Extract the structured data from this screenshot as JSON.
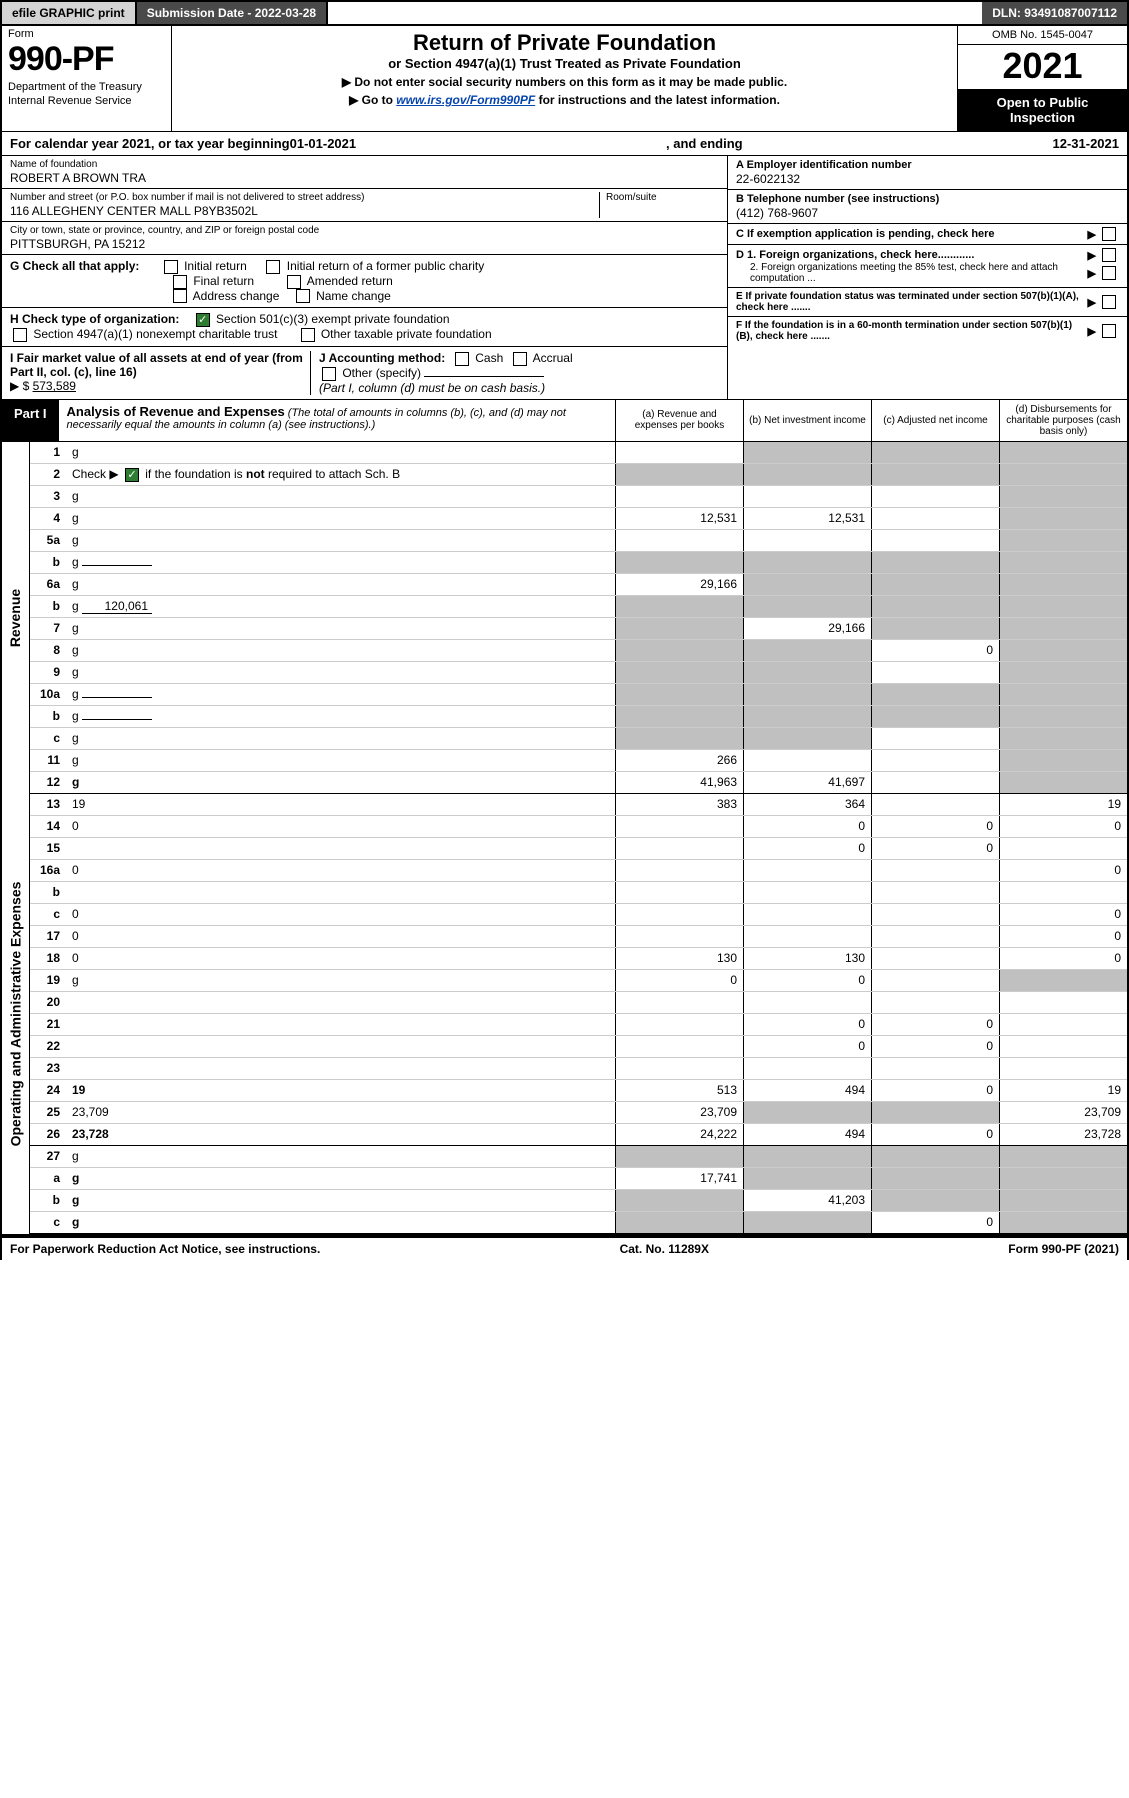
{
  "topbar": {
    "efile": "efile GRAPHIC print",
    "submission_label": "Submission Date - ",
    "submission_date": "2022-03-28",
    "dln_label": "DLN: ",
    "dln": "93491087007112"
  },
  "formbox": {
    "form_word": "Form",
    "form_number": "990-PF",
    "dept1": "Department of the Treasury",
    "dept2": "Internal Revenue Service"
  },
  "titlebox": {
    "main": "Return of Private Foundation",
    "sub": "or Section 4947(a)(1) Trust Treated as Private Foundation",
    "note1": "▶ Do not enter social security numbers on this form as it may be made public.",
    "note2_pre": "▶ Go to ",
    "note2_link": "www.irs.gov/Form990PF",
    "note2_post": " for instructions and the latest information."
  },
  "yearbox": {
    "omb": "OMB No. 1545-0047",
    "year": "2021",
    "open1": "Open to Public",
    "open2": "Inspection"
  },
  "calendar": {
    "pre": "For calendar year 2021, or tax year beginning ",
    "begin": "01-01-2021",
    "mid": ", and ending ",
    "end": "12-31-2021"
  },
  "entity": {
    "name_label": "Name of foundation",
    "name": "ROBERT A BROWN TRA",
    "addr_label": "Number and street (or P.O. box number if mail is not delivered to street address)",
    "addr": "116 ALLEGHENY CENTER MALL P8YB3502L",
    "room_label": "Room/suite",
    "city_label": "City or town, state or province, country, and ZIP or foreign postal code",
    "city": "PITTSBURGH, PA  15212",
    "ein_label": "A Employer identification number",
    "ein": "22-6022132",
    "phone_label": "B Telephone number (see instructions)",
    "phone": "(412) 768-9607",
    "c_label": "C If exemption application is pending, check here",
    "d1": "D 1. Foreign organizations, check here............",
    "d2": "2. Foreign organizations meeting the 85% test, check here and attach computation ...",
    "e_label": "E  If private foundation status was terminated under section 507(b)(1)(A), check here .......",
    "f_label": "F  If the foundation is in a 60-month termination under section 507(b)(1)(B), check here .......",
    "g_label": "G Check all that apply:",
    "g_opts": [
      "Initial return",
      "Initial return of a former public charity",
      "Final return",
      "Amended return",
      "Address change",
      "Name change"
    ],
    "h_label": "H Check type of organization:",
    "h1": "Section 501(c)(3) exempt private foundation",
    "h2": "Section 4947(a)(1) nonexempt charitable trust",
    "h3": "Other taxable private foundation",
    "i_label": "I Fair market value of all assets at end of year (from Part II, col. (c), line 16)",
    "i_val": "573,589",
    "j_label": "J Accounting method:",
    "j_cash": "Cash",
    "j_accrual": "Accrual",
    "j_other": "Other (specify)",
    "j_note": "(Part I, column (d) must be on cash basis.)"
  },
  "part1": {
    "label": "Part I",
    "title": "Analysis of Revenue and Expenses",
    "title_note": "(The total of amounts in columns (b), (c), and (d) may not necessarily equal the amounts in column (a) (see instructions).)",
    "cols": {
      "a": "(a)  Revenue and expenses per books",
      "b": "(b)  Net investment income",
      "c": "(c)  Adjusted net income",
      "d": "(d)  Disbursements for charitable purposes (cash basis only)"
    }
  },
  "sections": {
    "revenue": "Revenue",
    "opex": "Operating and Administrative Expenses"
  },
  "rows": [
    {
      "n": "1",
      "d": "g",
      "a": "",
      "b": "g",
      "c": "g"
    },
    {
      "n": "2",
      "d": "g",
      "a": "g",
      "b": "g",
      "c": "g",
      "checked": true
    },
    {
      "n": "3",
      "d": "g",
      "a": "",
      "b": "",
      "c": ""
    },
    {
      "n": "4",
      "d": "g",
      "a": "12,531",
      "b": "12,531",
      "c": ""
    },
    {
      "n": "5a",
      "d": "g",
      "a": "",
      "b": "",
      "c": ""
    },
    {
      "n": "b",
      "d": "g",
      "a": "g",
      "b": "g",
      "c": "g",
      "sub": true,
      "subline": ""
    },
    {
      "n": "6a",
      "d": "g",
      "a": "29,166",
      "b": "g",
      "c": "g"
    },
    {
      "n": "b",
      "d": "g",
      "a": "g",
      "b": "g",
      "c": "g",
      "sub": true,
      "subval": "120,061"
    },
    {
      "n": "7",
      "d": "g",
      "a": "g",
      "b": "29,166",
      "c": "g"
    },
    {
      "n": "8",
      "d": "g",
      "a": "g",
      "b": "g",
      "c": "0"
    },
    {
      "n": "9",
      "d": "g",
      "a": "g",
      "b": "g",
      "c": ""
    },
    {
      "n": "10a",
      "d": "g",
      "a": "g",
      "b": "g",
      "c": "g",
      "sub": true,
      "subline": ""
    },
    {
      "n": "b",
      "d": "g",
      "a": "g",
      "b": "g",
      "c": "g",
      "sub": true,
      "subline": ""
    },
    {
      "n": "c",
      "d": "g",
      "a": "g",
      "b": "g",
      "c": ""
    },
    {
      "n": "11",
      "d": "g",
      "a": "266",
      "b": "",
      "c": ""
    },
    {
      "n": "12",
      "d": "g",
      "a": "41,963",
      "b": "41,697",
      "c": "",
      "bold": true,
      "bb": true
    }
  ],
  "opex_rows": [
    {
      "n": "13",
      "d": "19",
      "a": "383",
      "b": "364",
      "c": ""
    },
    {
      "n": "14",
      "d": "0",
      "a": "",
      "b": "0",
      "c": "0"
    },
    {
      "n": "15",
      "d": "",
      "a": "",
      "b": "0",
      "c": "0"
    },
    {
      "n": "16a",
      "d": "0",
      "a": "",
      "b": "",
      "c": ""
    },
    {
      "n": "b",
      "d": "",
      "a": "",
      "b": "",
      "c": ""
    },
    {
      "n": "c",
      "d": "0",
      "a": "",
      "b": "",
      "c": ""
    },
    {
      "n": "17",
      "d": "0",
      "a": "",
      "b": "",
      "c": ""
    },
    {
      "n": "18",
      "d": "0",
      "a": "130",
      "b": "130",
      "c": ""
    },
    {
      "n": "19",
      "d": "g",
      "a": "0",
      "b": "0",
      "c": ""
    },
    {
      "n": "20",
      "d": "",
      "a": "",
      "b": "",
      "c": ""
    },
    {
      "n": "21",
      "d": "",
      "a": "",
      "b": "0",
      "c": "0"
    },
    {
      "n": "22",
      "d": "",
      "a": "",
      "b": "0",
      "c": "0"
    },
    {
      "n": "23",
      "d": "",
      "a": "",
      "b": "",
      "c": ""
    },
    {
      "n": "24",
      "d": "19",
      "a": "513",
      "b": "494",
      "c": "0",
      "bold": true
    },
    {
      "n": "25",
      "d": "23,709",
      "a": "23,709",
      "b": "g",
      "c": "g"
    },
    {
      "n": "26",
      "d": "23,728",
      "a": "24,222",
      "b": "494",
      "c": "0",
      "bold": true,
      "bb": true
    },
    {
      "n": "27",
      "d": "g",
      "a": "g",
      "b": "g",
      "c": "g"
    },
    {
      "n": "a",
      "d": "g",
      "a": "17,741",
      "b": "g",
      "c": "g",
      "bold": true
    },
    {
      "n": "b",
      "d": "g",
      "a": "g",
      "b": "41,203",
      "c": "g",
      "bold": true
    },
    {
      "n": "c",
      "d": "g",
      "a": "g",
      "b": "g",
      "c": "0",
      "bold": true,
      "bb": true
    }
  ],
  "footer": {
    "left": "For Paperwork Reduction Act Notice, see instructions.",
    "mid": "Cat. No. 11289X",
    "right": "Form 990-PF (2021)"
  }
}
